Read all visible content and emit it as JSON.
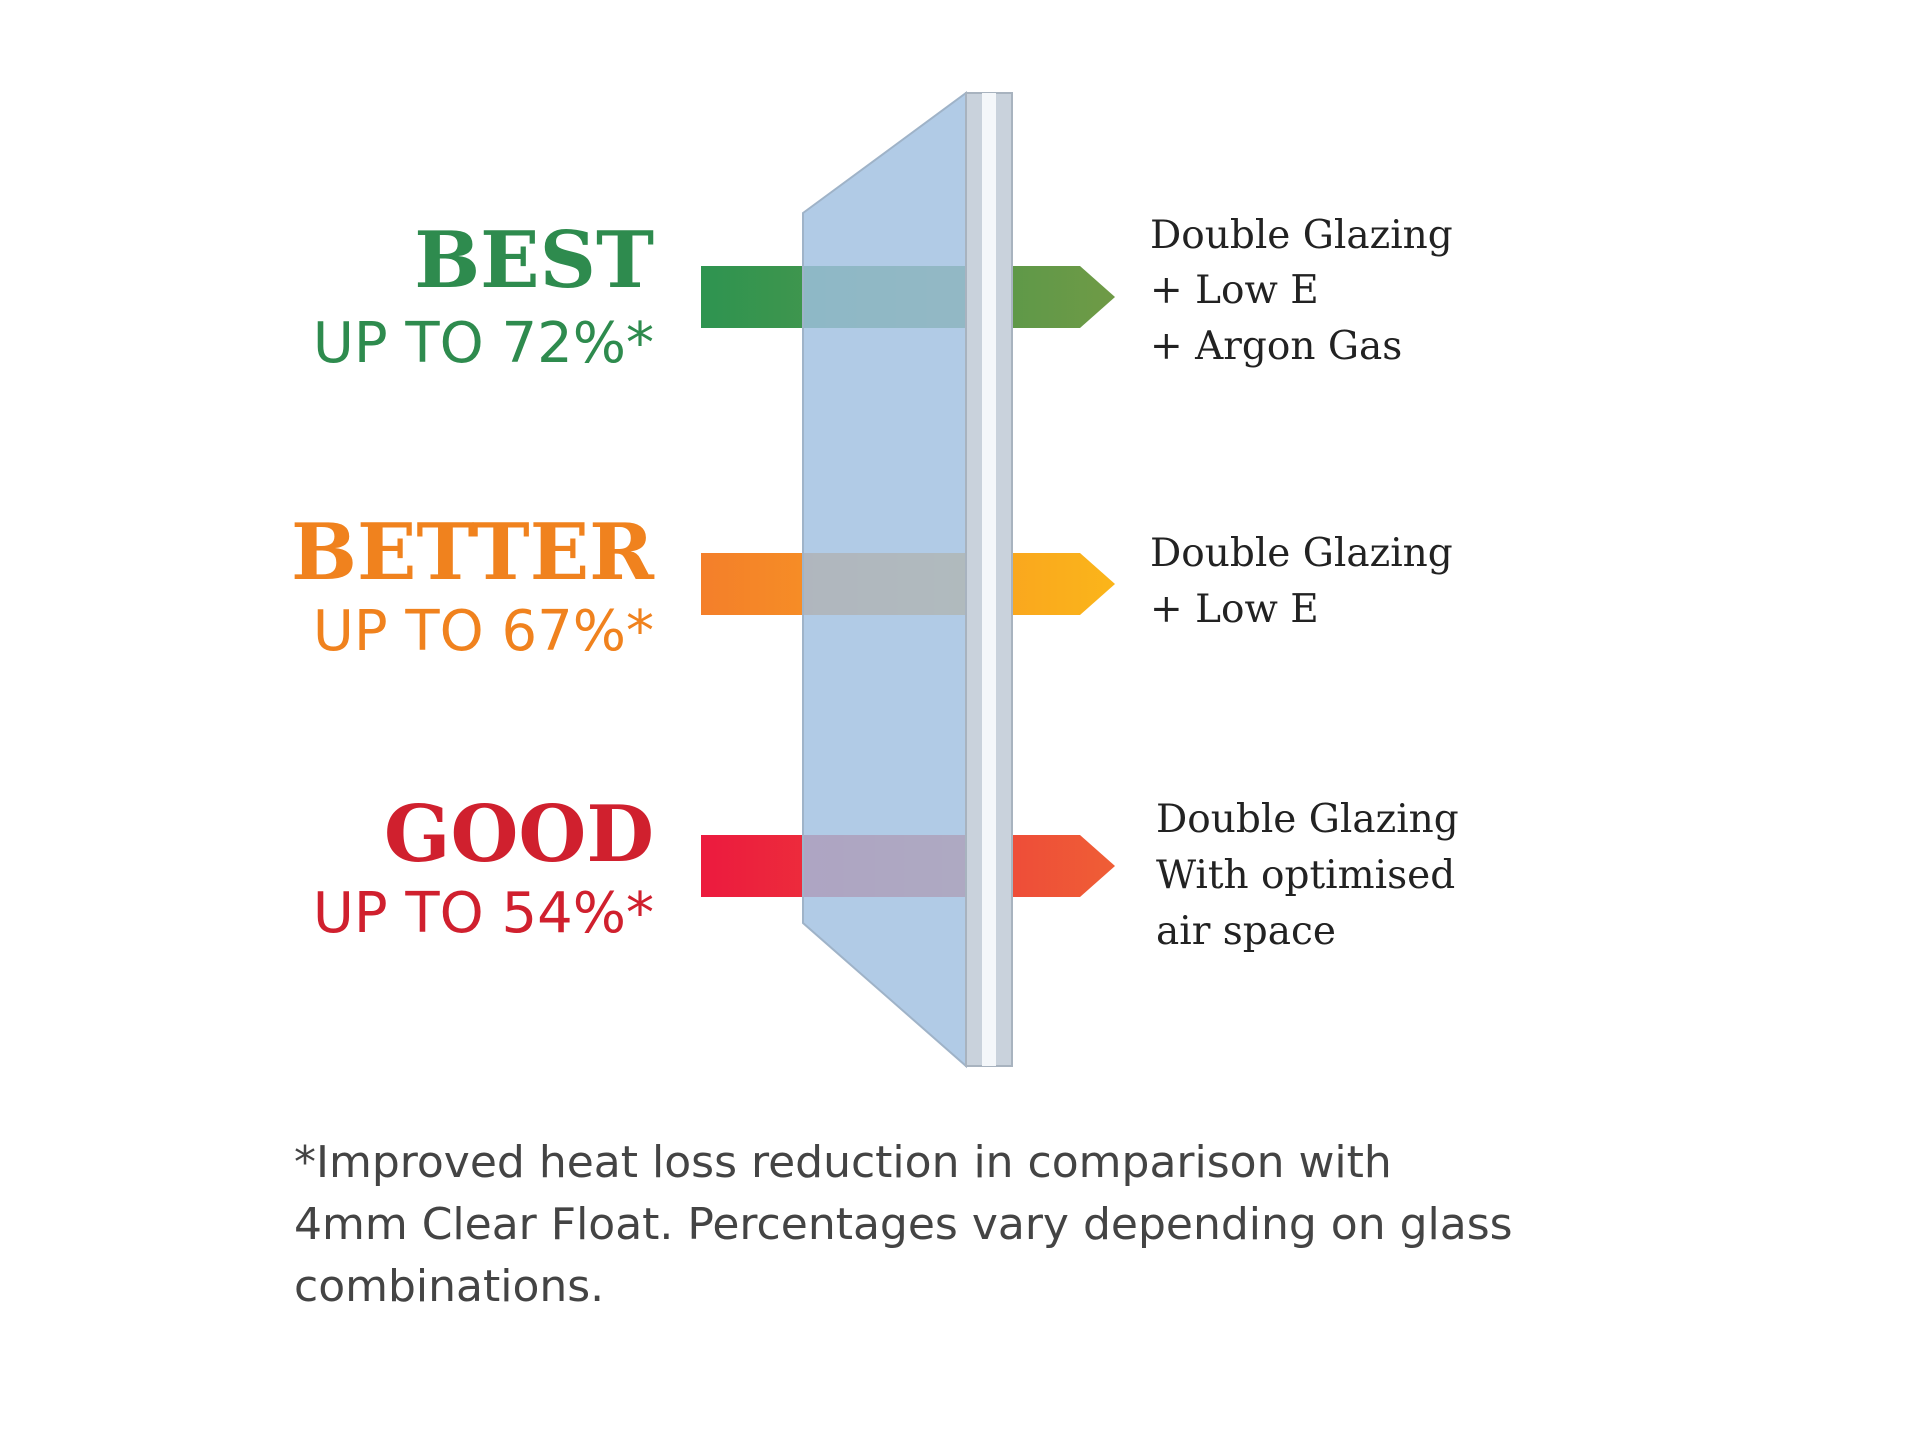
{
  "tiers": [
    {
      "rating": "BEST",
      "savings": "UP TO 72%*",
      "description": [
        "Double Glazing",
        "+ Low E",
        "+ Argon Gas"
      ]
    },
    {
      "rating": "BETTER",
      "savings": "UP TO 67%*",
      "description": [
        "Double Glazing",
        "+ Low E"
      ]
    },
    {
      "rating": "GOOD",
      "savings": "UP TO 54%*",
      "description": [
        "Double Glazing",
        "With optimised",
        "air space"
      ]
    }
  ],
  "footnote": [
    "*Improved heat loss reduction in comparison with",
    "4mm Clear Float. Percentages vary depending on glass",
    "combinations."
  ]
}
